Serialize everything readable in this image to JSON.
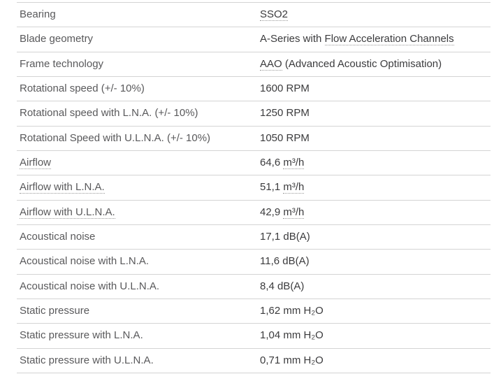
{
  "colors": {
    "background": "#ffffff",
    "label_text": "#59595b",
    "value_text": "#3b3b3d",
    "row_border": "#d4d4d4",
    "term_underline": "#999999"
  },
  "table": {
    "rows": [
      {
        "label": {
          "pre": "Bearing"
        },
        "value": {
          "link": "SSO2"
        }
      },
      {
        "label": {
          "pre": "Blade geometry"
        },
        "value": {
          "pre": "A-Series with ",
          "link": "Flow Acceleration Channels"
        }
      },
      {
        "label": {
          "pre": "Frame technology"
        },
        "value": {
          "link": "AAO",
          "post": " (Advanced Acoustic Optimisation)"
        }
      },
      {
        "label": {
          "pre": "Rotational speed (+/- 10%)"
        },
        "value": {
          "pre": "1600 RPM"
        }
      },
      {
        "label": {
          "pre": "Rotational speed with L.N.A. (+/- 10%)"
        },
        "value": {
          "pre": "1250 RPM"
        }
      },
      {
        "label": {
          "pre": "Rotational Speed with U.L.N.A. (+/- 10%)"
        },
        "value": {
          "pre": "1050 RPM"
        }
      },
      {
        "label": {
          "link": "Airflow"
        },
        "value": {
          "pre": "64,6 ",
          "link": "m³/h"
        }
      },
      {
        "label": {
          "link": "Airflow with L.N.A."
        },
        "value": {
          "pre": "51,1 ",
          "link": "m³/h"
        }
      },
      {
        "label": {
          "link": "Airflow with U.L.N.A."
        },
        "value": {
          "pre": "42,9 ",
          "link": "m³/h"
        }
      },
      {
        "label": {
          "pre": "Acoustical noise"
        },
        "value": {
          "pre": "17,1 dB(A)"
        }
      },
      {
        "label": {
          "pre": "Acoustical noise with L.N.A."
        },
        "value": {
          "pre": "11,6 dB(A)"
        }
      },
      {
        "label": {
          "pre": "Acoustical noise with U.L.N.A."
        },
        "value": {
          "pre": "8,4 dB(A)"
        }
      },
      {
        "label": {
          "pre": "Static pressure"
        },
        "value": {
          "pre": "1,62 mm H₂O"
        }
      },
      {
        "label": {
          "pre": "Static pressure with L.N.A."
        },
        "value": {
          "pre": "1,04 mm H₂O"
        }
      },
      {
        "label": {
          "pre": "Static pressure with U.L.N.A."
        },
        "value": {
          "pre": "0,71 mm H₂O"
        }
      }
    ]
  }
}
